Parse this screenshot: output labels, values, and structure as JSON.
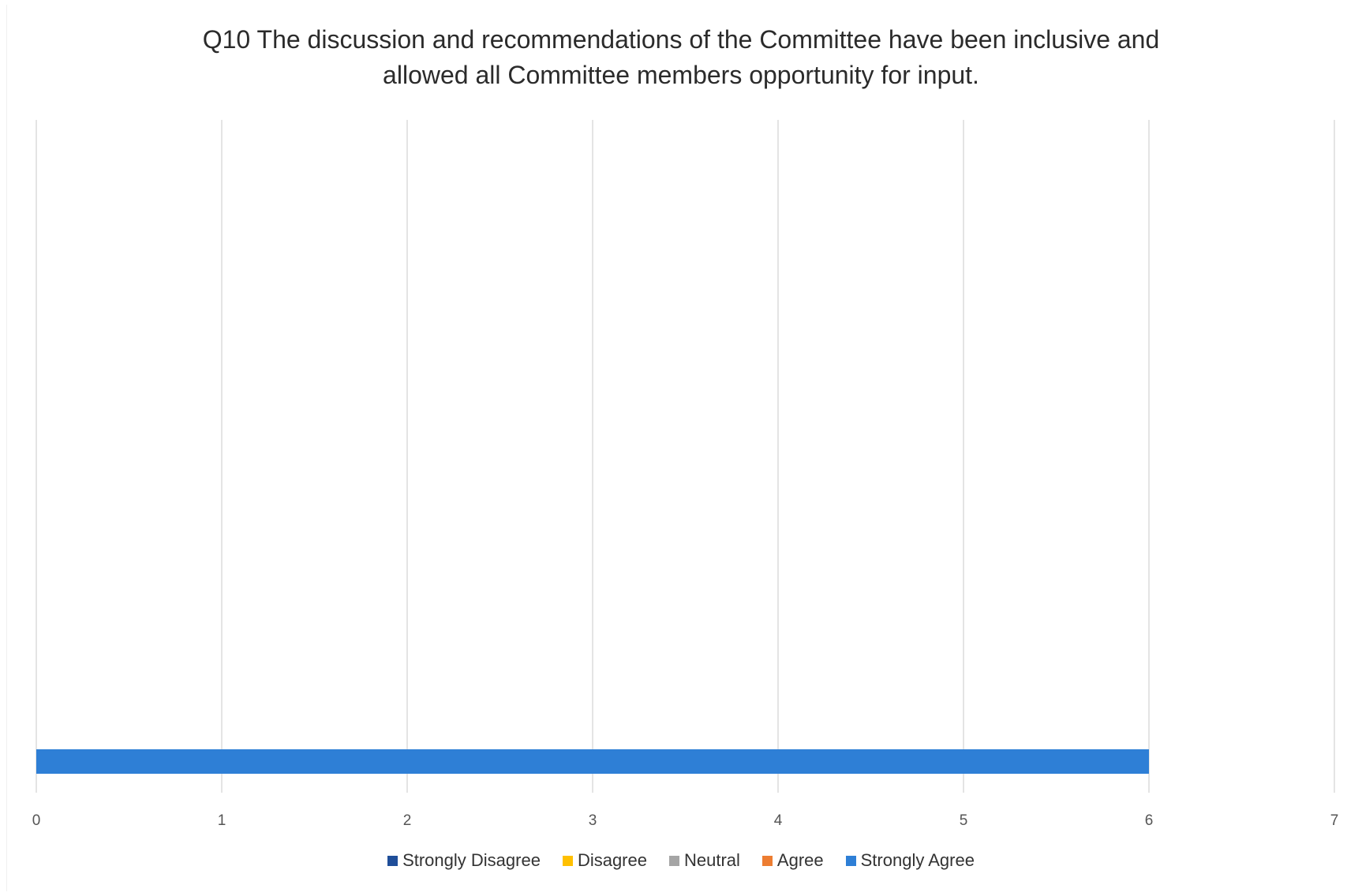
{
  "chart_data": {
    "type": "bar",
    "orientation": "horizontal",
    "title_lines": [
      "Q10 The discussion and recommendations of the Committee have been inclusive and",
      "allowed  all Committee members opportunity for input."
    ],
    "categories": [
      ""
    ],
    "series": [
      {
        "name": "Strongly Disagree",
        "color": "#1f4e99",
        "values": [
          0
        ]
      },
      {
        "name": "Disagree",
        "color": "#ffc000",
        "values": [
          0
        ]
      },
      {
        "name": "Neutral",
        "color": "#a5a5a5",
        "values": [
          0
        ]
      },
      {
        "name": "Agree",
        "color": "#ed7d31",
        "values": [
          0
        ]
      },
      {
        "name": "Strongly Agree",
        "color": "#2e7fd6",
        "values": [
          6
        ]
      }
    ],
    "xlim": [
      0,
      7
    ],
    "x_ticks": [
      "0",
      "1",
      "2",
      "3",
      "4",
      "5",
      "6",
      "7"
    ],
    "grid": "vertical",
    "legend_position": "bottom"
  }
}
